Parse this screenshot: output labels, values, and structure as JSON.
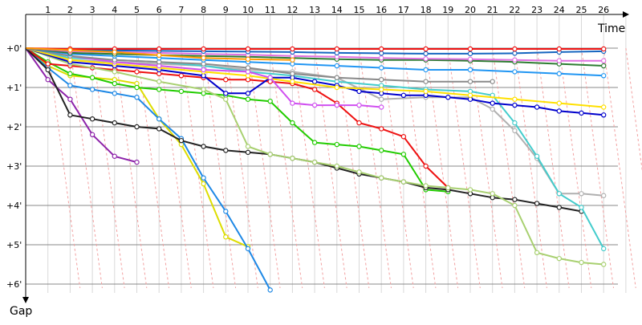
{
  "chart_data": {
    "type": "line",
    "title": "",
    "xlabel": "Time",
    "ylabel": "Gap",
    "xlim": [
      0,
      27
    ],
    "ylim": [
      0,
      6.1
    ],
    "y_inverted": true,
    "grid": true,
    "x_ticks": [
      "1",
      "2",
      "3",
      "4",
      "5",
      "6",
      "7",
      "8",
      "9",
      "10",
      "11",
      "12",
      "13",
      "14",
      "15",
      "16",
      "17",
      "18",
      "19",
      "20",
      "21",
      "22",
      "23",
      "24",
      "25",
      "26"
    ],
    "y_ticks": [
      "+0'",
      "+1'",
      "+2'",
      "+3'",
      "+4'",
      "+5'",
      "+6'"
    ],
    "series": [
      {
        "color": "#8e24aa",
        "points": [
          [
            0,
            0
          ],
          [
            1,
            0.8
          ],
          [
            2,
            1.3
          ],
          [
            3,
            2.2
          ],
          [
            4,
            2.75
          ],
          [
            5,
            2.9
          ]
        ]
      },
      {
        "color": "#dddd00",
        "points": [
          [
            0,
            0
          ],
          [
            1,
            0.45
          ],
          [
            2,
            0.7
          ],
          [
            3,
            0.75
          ],
          [
            4,
            0.8
          ],
          [
            5,
            0.9
          ],
          [
            6,
            1.8
          ],
          [
            7,
            2.45
          ],
          [
            8,
            3.45
          ],
          [
            9,
            4.8
          ],
          [
            10,
            5.05
          ]
        ]
      },
      {
        "color": "#1e88e5",
        "points": [
          [
            0,
            0
          ],
          [
            1,
            0.5
          ],
          [
            2,
            0.95
          ],
          [
            3,
            1.05
          ],
          [
            4,
            1.15
          ],
          [
            5,
            1.25
          ],
          [
            6,
            1.8
          ],
          [
            7,
            2.3
          ],
          [
            8,
            3.3
          ],
          [
            9,
            4.15
          ],
          [
            10,
            5.1
          ],
          [
            11,
            6.15
          ]
        ]
      },
      {
        "color": "#22cc00",
        "points": [
          [
            0,
            0
          ],
          [
            1,
            0.35
          ],
          [
            2,
            0.65
          ],
          [
            3,
            0.75
          ],
          [
            4,
            0.9
          ],
          [
            5,
            1.0
          ],
          [
            6,
            1.05
          ],
          [
            7,
            1.1
          ],
          [
            8,
            1.15
          ],
          [
            9,
            1.2
          ],
          [
            10,
            1.3
          ],
          [
            11,
            1.35
          ],
          [
            12,
            1.9
          ],
          [
            13,
            2.4
          ],
          [
            14,
            2.45
          ],
          [
            15,
            2.5
          ],
          [
            16,
            2.6
          ],
          [
            17,
            2.7
          ],
          [
            18,
            3.6
          ],
          [
            19,
            3.65
          ]
        ]
      },
      {
        "color": "#ee1111",
        "points": [
          [
            0,
            0
          ],
          [
            1,
            0.4
          ],
          [
            2,
            0.45
          ],
          [
            3,
            0.5
          ],
          [
            4,
            0.55
          ],
          [
            5,
            0.6
          ],
          [
            6,
            0.65
          ],
          [
            7,
            0.7
          ],
          [
            8,
            0.75
          ],
          [
            9,
            0.8
          ],
          [
            10,
            0.8
          ],
          [
            11,
            0.85
          ],
          [
            12,
            0.9
          ],
          [
            13,
            1.05
          ],
          [
            14,
            1.4
          ],
          [
            15,
            1.9
          ],
          [
            16,
            2.05
          ],
          [
            17,
            2.25
          ],
          [
            18,
            3.0
          ],
          [
            19,
            3.55
          ]
        ]
      },
      {
        "color": "#222222",
        "points": [
          [
            0,
            0
          ],
          [
            1,
            0.55
          ],
          [
            2,
            1.7
          ],
          [
            3,
            1.8
          ],
          [
            4,
            1.9
          ],
          [
            5,
            2.0
          ],
          [
            6,
            2.05
          ],
          [
            7,
            2.35
          ],
          [
            8,
            2.5
          ],
          [
            9,
            2.6
          ],
          [
            10,
            2.65
          ],
          [
            11,
            2.7
          ],
          [
            12,
            2.8
          ],
          [
            13,
            2.9
          ],
          [
            14,
            3.05
          ],
          [
            15,
            3.2
          ],
          [
            16,
            3.3
          ],
          [
            17,
            3.4
          ],
          [
            18,
            3.55
          ],
          [
            19,
            3.6
          ],
          [
            20,
            3.7
          ],
          [
            21,
            3.8
          ],
          [
            22,
            3.85
          ],
          [
            23,
            3.95
          ],
          [
            24,
            4.05
          ],
          [
            25,
            4.15
          ]
        ]
      },
      {
        "color": "#b0b0b0",
        "points": [
          [
            0,
            0
          ],
          [
            2,
            0.3
          ],
          [
            4,
            0.35
          ],
          [
            6,
            0.4
          ],
          [
            8,
            0.45
          ],
          [
            10,
            0.55
          ],
          [
            12,
            0.6
          ],
          [
            14,
            0.75
          ],
          [
            16,
            1.3
          ],
          [
            18,
            1.25
          ],
          [
            20,
            1.25
          ],
          [
            21,
            1.55
          ],
          [
            22,
            2.1
          ],
          [
            23,
            2.8
          ],
          [
            24,
            3.7
          ],
          [
            25,
            3.7
          ],
          [
            26,
            3.75
          ]
        ]
      },
      {
        "color": "#a8d070",
        "points": [
          [
            0,
            0
          ],
          [
            2,
            0.4
          ],
          [
            4,
            0.6
          ],
          [
            6,
            0.85
          ],
          [
            8,
            1.05
          ],
          [
            9,
            1.3
          ],
          [
            10,
            2.5
          ],
          [
            11,
            2.7
          ],
          [
            12,
            2.8
          ],
          [
            13,
            2.9
          ],
          [
            14,
            3.0
          ],
          [
            15,
            3.15
          ],
          [
            16,
            3.3
          ],
          [
            17,
            3.4
          ],
          [
            18,
            3.5
          ],
          [
            19,
            3.55
          ],
          [
            20,
            3.6
          ],
          [
            21,
            3.7
          ],
          [
            22,
            4.0
          ],
          [
            23,
            5.2
          ],
          [
            24,
            5.35
          ],
          [
            25,
            5.45
          ],
          [
            26,
            5.5
          ]
        ]
      },
      {
        "color": "#44cccc",
        "points": [
          [
            0,
            0
          ],
          [
            2,
            0.25
          ],
          [
            4,
            0.3
          ],
          [
            6,
            0.35
          ],
          [
            8,
            0.45
          ],
          [
            10,
            0.6
          ],
          [
            12,
            0.7
          ],
          [
            14,
            0.85
          ],
          [
            16,
            0.95
          ],
          [
            18,
            1.05
          ],
          [
            20,
            1.1
          ],
          [
            21,
            1.2
          ],
          [
            22,
            1.9
          ],
          [
            23,
            2.75
          ],
          [
            24,
            3.7
          ],
          [
            25,
            4.05
          ],
          [
            26,
            5.1
          ]
        ]
      },
      {
        "color": "#0000cc",
        "points": [
          [
            0,
            0
          ],
          [
            2,
            0.35
          ],
          [
            4,
            0.45
          ],
          [
            6,
            0.55
          ],
          [
            8,
            0.7
          ],
          [
            9,
            1.15
          ],
          [
            10,
            1.15
          ],
          [
            11,
            0.75
          ],
          [
            12,
            0.75
          ],
          [
            13,
            0.85
          ],
          [
            14,
            0.95
          ],
          [
            15,
            1.1
          ],
          [
            16,
            1.15
          ],
          [
            17,
            1.2
          ],
          [
            18,
            1.2
          ],
          [
            19,
            1.25
          ],
          [
            20,
            1.3
          ],
          [
            21,
            1.4
          ],
          [
            22,
            1.45
          ],
          [
            23,
            1.5
          ],
          [
            24,
            1.6
          ],
          [
            25,
            1.65
          ],
          [
            26,
            1.7
          ]
        ]
      },
      {
        "color": "#ffe000",
        "points": [
          [
            0,
            0
          ],
          [
            2,
            0.3
          ],
          [
            4,
            0.4
          ],
          [
            6,
            0.5
          ],
          [
            8,
            0.6
          ],
          [
            10,
            0.7
          ],
          [
            12,
            0.85
          ],
          [
            14,
            1.0
          ],
          [
            16,
            1.05
          ],
          [
            18,
            1.1
          ],
          [
            20,
            1.2
          ],
          [
            22,
            1.3
          ],
          [
            24,
            1.4
          ],
          [
            26,
            1.5
          ]
        ]
      },
      {
        "color": "#d050f0",
        "points": [
          [
            0,
            0
          ],
          [
            2,
            0.2
          ],
          [
            4,
            0.35
          ],
          [
            6,
            0.45
          ],
          [
            8,
            0.55
          ],
          [
            10,
            0.6
          ],
          [
            11,
            0.75
          ],
          [
            12,
            1.4
          ],
          [
            13,
            1.45
          ],
          [
            14,
            1.45
          ],
          [
            15,
            1.45
          ],
          [
            16,
            1.5
          ]
        ]
      },
      {
        "color": "#8a8a8a",
        "points": [
          [
            0,
            0
          ],
          [
            2,
            0.2
          ],
          [
            4,
            0.3
          ],
          [
            6,
            0.35
          ],
          [
            8,
            0.4
          ],
          [
            10,
            0.5
          ],
          [
            12,
            0.65
          ],
          [
            14,
            0.75
          ],
          [
            16,
            0.8
          ],
          [
            18,
            0.85
          ],
          [
            20,
            0.85
          ],
          [
            21,
            0.85
          ]
        ]
      },
      {
        "color": "#2196f3",
        "points": [
          [
            0,
            0
          ],
          [
            2,
            0.15
          ],
          [
            4,
            0.2
          ],
          [
            6,
            0.25
          ],
          [
            8,
            0.3
          ],
          [
            10,
            0.35
          ],
          [
            12,
            0.4
          ],
          [
            14,
            0.45
          ],
          [
            16,
            0.5
          ],
          [
            18,
            0.55
          ],
          [
            20,
            0.55
          ],
          [
            22,
            0.6
          ],
          [
            24,
            0.65
          ],
          [
            26,
            0.7
          ]
        ]
      },
      {
        "color": "#2e7d32",
        "points": [
          [
            0,
            0
          ],
          [
            2,
            0.12
          ],
          [
            4,
            0.15
          ],
          [
            6,
            0.18
          ],
          [
            8,
            0.2
          ],
          [
            10,
            0.22
          ],
          [
            12,
            0.25
          ],
          [
            14,
            0.28
          ],
          [
            16,
            0.3
          ],
          [
            18,
            0.3
          ],
          [
            20,
            0.32
          ],
          [
            22,
            0.35
          ],
          [
            24,
            0.4
          ],
          [
            26,
            0.45
          ]
        ]
      },
      {
        "color": "#e070e0",
        "points": [
          [
            0,
            0
          ],
          [
            2,
            0.08
          ],
          [
            4,
            0.1
          ],
          [
            6,
            0.12
          ],
          [
            8,
            0.15
          ],
          [
            10,
            0.17
          ],
          [
            12,
            0.2
          ],
          [
            14,
            0.22
          ],
          [
            16,
            0.25
          ],
          [
            18,
            0.27
          ],
          [
            20,
            0.28
          ],
          [
            22,
            0.3
          ],
          [
            24,
            0.32
          ],
          [
            26,
            0.32
          ]
        ]
      },
      {
        "color": "#1565c0",
        "points": [
          [
            0,
            0
          ],
          [
            2,
            0.05
          ],
          [
            4,
            0.06
          ],
          [
            6,
            0.07
          ],
          [
            8,
            0.08
          ],
          [
            10,
            0.09
          ],
          [
            12,
            0.1
          ],
          [
            14,
            0.12
          ],
          [
            16,
            0.13
          ],
          [
            18,
            0.14
          ],
          [
            20,
            0.14
          ],
          [
            22,
            0.13
          ],
          [
            24,
            0.1
          ],
          [
            26,
            0.08
          ]
        ]
      },
      {
        "color": "#ee1111",
        "points": [
          [
            0,
            0
          ],
          [
            2,
            0.02
          ],
          [
            4,
            0.02
          ],
          [
            6,
            0.02
          ],
          [
            8,
            0.02
          ],
          [
            10,
            0.02
          ],
          [
            12,
            0.02
          ],
          [
            14,
            0.02
          ],
          [
            16,
            0.02
          ],
          [
            18,
            0.02
          ],
          [
            20,
            0.02
          ],
          [
            22,
            0.02
          ],
          [
            24,
            0.02
          ],
          [
            26,
            0.02
          ]
        ]
      },
      {
        "color": "#ff9900",
        "points": [
          [
            0,
            0
          ],
          [
            2,
            0.05
          ],
          [
            4,
            0.1
          ],
          [
            6,
            0.18
          ],
          [
            8,
            0.25
          ],
          [
            10,
            0.28
          ],
          [
            12,
            0.3
          ]
        ]
      }
    ]
  }
}
